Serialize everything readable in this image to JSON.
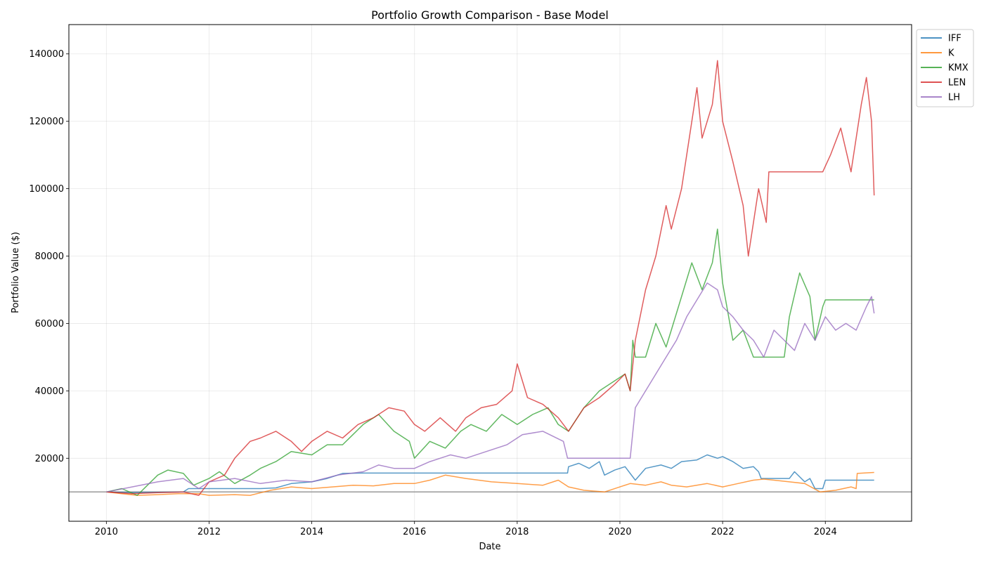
{
  "chart_data": {
    "type": "line",
    "title": "Portfolio Growth Comparison - Base Model",
    "xlabel": "Date",
    "ylabel": "Portfolio Value ($)",
    "xlim": [
      2009.27,
      2025.68
    ],
    "ylim": [
      1300,
      148700
    ],
    "x_ticks": [
      2010,
      2012,
      2014,
      2016,
      2018,
      2020,
      2022,
      2024
    ],
    "y_ticks": [
      20000,
      40000,
      60000,
      80000,
      100000,
      120000,
      140000
    ],
    "grid": true,
    "legend_position": "top-right outside",
    "reference_line": {
      "y": 10000,
      "color": "#999999"
    },
    "series": [
      {
        "name": "IFF",
        "color": "#1f77b4",
        "points": [
          [
            2010.0,
            10000
          ],
          [
            2010.5,
            9800
          ],
          [
            2011.0,
            9900
          ],
          [
            2011.5,
            10000
          ],
          [
            2011.6,
            11000
          ],
          [
            2012.0,
            11000
          ],
          [
            2012.5,
            11000
          ],
          [
            2013.0,
            11000
          ],
          [
            2013.3,
            11200
          ],
          [
            2013.6,
            12500
          ],
          [
            2014.0,
            13000
          ],
          [
            2014.3,
            14000
          ],
          [
            2014.6,
            15500
          ],
          [
            2015.0,
            15600
          ],
          [
            2016.0,
            15600
          ],
          [
            2017.0,
            15600
          ],
          [
            2018.0,
            15600
          ],
          [
            2018.98,
            15600
          ],
          [
            2019.0,
            17500
          ],
          [
            2019.2,
            18500
          ],
          [
            2019.4,
            17000
          ],
          [
            2019.6,
            19000
          ],
          [
            2019.7,
            15000
          ],
          [
            2019.9,
            16500
          ],
          [
            2020.1,
            17500
          ],
          [
            2020.3,
            13500
          ],
          [
            2020.5,
            17000
          ],
          [
            2020.8,
            18000
          ],
          [
            2021.0,
            17000
          ],
          [
            2021.2,
            19000
          ],
          [
            2021.5,
            19500
          ],
          [
            2021.7,
            21000
          ],
          [
            2021.9,
            20000
          ],
          [
            2022.0,
            20500
          ],
          [
            2022.2,
            19000
          ],
          [
            2022.4,
            17000
          ],
          [
            2022.6,
            17500
          ],
          [
            2022.7,
            16000
          ],
          [
            2022.75,
            14000
          ],
          [
            2023.3,
            14000
          ],
          [
            2023.4,
            16000
          ],
          [
            2023.6,
            13000
          ],
          [
            2023.7,
            14000
          ],
          [
            2023.8,
            11000
          ],
          [
            2023.95,
            11000
          ],
          [
            2024.0,
            13500
          ],
          [
            2024.95,
            13500
          ]
        ]
      },
      {
        "name": "K",
        "color": "#ff7f0e",
        "points": [
          [
            2010.0,
            10000
          ],
          [
            2010.3,
            9500
          ],
          [
            2010.6,
            9000
          ],
          [
            2011.0,
            9200
          ],
          [
            2011.4,
            9500
          ],
          [
            2011.8,
            9500
          ],
          [
            2012.0,
            9000
          ],
          [
            2012.5,
            9200
          ],
          [
            2012.8,
            9000
          ],
          [
            2013.2,
            10500
          ],
          [
            2013.6,
            11500
          ],
          [
            2014.0,
            11000
          ],
          [
            2014.4,
            11500
          ],
          [
            2014.8,
            12000
          ],
          [
            2015.2,
            11800
          ],
          [
            2015.6,
            12500
          ],
          [
            2016.0,
            12500
          ],
          [
            2016.3,
            13500
          ],
          [
            2016.6,
            15000
          ],
          [
            2017.0,
            14000
          ],
          [
            2017.5,
            13000
          ],
          [
            2018.0,
            12500
          ],
          [
            2018.5,
            12000
          ],
          [
            2018.8,
            13500
          ],
          [
            2019.0,
            11500
          ],
          [
            2019.3,
            10500
          ],
          [
            2019.7,
            10000
          ],
          [
            2020.0,
            11500
          ],
          [
            2020.2,
            12500
          ],
          [
            2020.5,
            12000
          ],
          [
            2020.8,
            13000
          ],
          [
            2021.0,
            12000
          ],
          [
            2021.3,
            11500
          ],
          [
            2021.7,
            12500
          ],
          [
            2022.0,
            11500
          ],
          [
            2022.3,
            12500
          ],
          [
            2022.6,
            13500
          ],
          [
            2022.8,
            13800
          ],
          [
            2023.0,
            13500
          ],
          [
            2023.3,
            13000
          ],
          [
            2023.6,
            12500
          ],
          [
            2023.9,
            10000
          ],
          [
            2024.2,
            10500
          ],
          [
            2024.5,
            11500
          ],
          [
            2024.6,
            11000
          ],
          [
            2024.62,
            15500
          ],
          [
            2024.95,
            15800
          ]
        ]
      },
      {
        "name": "KMX",
        "color": "#2ca02c",
        "points": [
          [
            2010.0,
            10000
          ],
          [
            2010.3,
            11000
          ],
          [
            2010.6,
            9000
          ],
          [
            2010.8,
            12000
          ],
          [
            2011.0,
            15000
          ],
          [
            2011.2,
            16500
          ],
          [
            2011.5,
            15500
          ],
          [
            2011.7,
            12000
          ],
          [
            2012.0,
            14000
          ],
          [
            2012.2,
            16000
          ],
          [
            2012.5,
            12500
          ],
          [
            2012.8,
            15000
          ],
          [
            2013.0,
            17000
          ],
          [
            2013.3,
            19000
          ],
          [
            2013.6,
            22000
          ],
          [
            2014.0,
            21000
          ],
          [
            2014.3,
            24000
          ],
          [
            2014.6,
            24000
          ],
          [
            2014.8,
            27000
          ],
          [
            2015.0,
            30000
          ],
          [
            2015.3,
            33000
          ],
          [
            2015.6,
            28000
          ],
          [
            2015.9,
            25000
          ],
          [
            2016.0,
            20000
          ],
          [
            2016.3,
            25000
          ],
          [
            2016.6,
            23000
          ],
          [
            2016.9,
            28000
          ],
          [
            2017.1,
            30000
          ],
          [
            2017.4,
            28000
          ],
          [
            2017.7,
            33000
          ],
          [
            2018.0,
            30000
          ],
          [
            2018.3,
            33000
          ],
          [
            2018.6,
            35000
          ],
          [
            2018.8,
            30000
          ],
          [
            2019.0,
            28000
          ],
          [
            2019.3,
            35000
          ],
          [
            2019.6,
            40000
          ],
          [
            2019.9,
            43000
          ],
          [
            2020.1,
            45000
          ],
          [
            2020.2,
            40000
          ],
          [
            2020.25,
            55000
          ],
          [
            2020.3,
            50000
          ],
          [
            2020.5,
            50000
          ],
          [
            2020.7,
            60000
          ],
          [
            2020.9,
            53000
          ],
          [
            2021.0,
            58000
          ],
          [
            2021.2,
            68000
          ],
          [
            2021.4,
            78000
          ],
          [
            2021.6,
            70000
          ],
          [
            2021.8,
            78000
          ],
          [
            2021.9,
            88000
          ],
          [
            2022.0,
            72000
          ],
          [
            2022.2,
            55000
          ],
          [
            2022.4,
            58000
          ],
          [
            2022.6,
            50000
          ],
          [
            2022.75,
            50000
          ],
          [
            2023.2,
            50000
          ],
          [
            2023.3,
            62000
          ],
          [
            2023.5,
            75000
          ],
          [
            2023.7,
            68000
          ],
          [
            2023.8,
            55000
          ],
          [
            2023.95,
            65000
          ],
          [
            2024.0,
            67000
          ],
          [
            2024.95,
            67000
          ]
        ]
      },
      {
        "name": "LEN",
        "color": "#d62728",
        "points": [
          [
            2010.0,
            10000
          ],
          [
            2010.5,
            9500
          ],
          [
            2011.0,
            9800
          ],
          [
            2011.5,
            10000
          ],
          [
            2011.8,
            9000
          ],
          [
            2012.0,
            13000
          ],
          [
            2012.3,
            15000
          ],
          [
            2012.5,
            20000
          ],
          [
            2012.8,
            25000
          ],
          [
            2013.0,
            26000
          ],
          [
            2013.3,
            28000
          ],
          [
            2013.6,
            25000
          ],
          [
            2013.8,
            22000
          ],
          [
            2014.0,
            25000
          ],
          [
            2014.3,
            28000
          ],
          [
            2014.6,
            26000
          ],
          [
            2014.9,
            30000
          ],
          [
            2015.2,
            32000
          ],
          [
            2015.5,
            35000
          ],
          [
            2015.8,
            34000
          ],
          [
            2016.0,
            30000
          ],
          [
            2016.2,
            28000
          ],
          [
            2016.5,
            32000
          ],
          [
            2016.8,
            28000
          ],
          [
            2017.0,
            32000
          ],
          [
            2017.3,
            35000
          ],
          [
            2017.6,
            36000
          ],
          [
            2017.9,
            40000
          ],
          [
            2018.0,
            48000
          ],
          [
            2018.2,
            38000
          ],
          [
            2018.5,
            36000
          ],
          [
            2018.8,
            32000
          ],
          [
            2019.0,
            28000
          ],
          [
            2019.3,
            35000
          ],
          [
            2019.6,
            38000
          ],
          [
            2019.9,
            42000
          ],
          [
            2020.1,
            45000
          ],
          [
            2020.2,
            40000
          ],
          [
            2020.3,
            55000
          ],
          [
            2020.5,
            70000
          ],
          [
            2020.7,
            80000
          ],
          [
            2020.9,
            95000
          ],
          [
            2021.0,
            88000
          ],
          [
            2021.2,
            100000
          ],
          [
            2021.4,
            120000
          ],
          [
            2021.5,
            130000
          ],
          [
            2021.6,
            115000
          ],
          [
            2021.8,
            125000
          ],
          [
            2021.9,
            138000
          ],
          [
            2022.0,
            120000
          ],
          [
            2022.2,
            108000
          ],
          [
            2022.4,
            95000
          ],
          [
            2022.5,
            80000
          ],
          [
            2022.7,
            100000
          ],
          [
            2022.85,
            90000
          ],
          [
            2022.9,
            105000
          ],
          [
            2023.95,
            105000
          ],
          [
            2024.1,
            110000
          ],
          [
            2024.3,
            118000
          ],
          [
            2024.5,
            105000
          ],
          [
            2024.7,
            125000
          ],
          [
            2024.8,
            133000
          ],
          [
            2024.9,
            120000
          ],
          [
            2024.95,
            98000
          ]
        ]
      },
      {
        "name": "LH",
        "color": "#9467bd",
        "points": [
          [
            2010.0,
            10000
          ],
          [
            2010.5,
            11500
          ],
          [
            2011.0,
            13000
          ],
          [
            2011.5,
            14000
          ],
          [
            2011.8,
            11000
          ],
          [
            2012.0,
            13000
          ],
          [
            2012.5,
            14000
          ],
          [
            2013.0,
            12500
          ],
          [
            2013.5,
            13500
          ],
          [
            2014.0,
            13000
          ],
          [
            2014.5,
            15000
          ],
          [
            2015.0,
            16000
          ],
          [
            2015.3,
            18000
          ],
          [
            2015.6,
            17000
          ],
          [
            2016.0,
            17000
          ],
          [
            2016.3,
            19000
          ],
          [
            2016.7,
            21000
          ],
          [
            2017.0,
            20000
          ],
          [
            2017.4,
            22000
          ],
          [
            2017.8,
            24000
          ],
          [
            2018.1,
            27000
          ],
          [
            2018.5,
            28000
          ],
          [
            2018.9,
            25000
          ],
          [
            2018.98,
            20000
          ],
          [
            2020.2,
            20000
          ],
          [
            2020.3,
            35000
          ],
          [
            2020.5,
            40000
          ],
          [
            2020.7,
            45000
          ],
          [
            2020.9,
            50000
          ],
          [
            2021.1,
            55000
          ],
          [
            2021.3,
            62000
          ],
          [
            2021.5,
            67000
          ],
          [
            2021.7,
            72000
          ],
          [
            2021.9,
            70000
          ],
          [
            2022.0,
            65000
          ],
          [
            2022.2,
            62000
          ],
          [
            2022.4,
            58000
          ],
          [
            2022.6,
            55000
          ],
          [
            2022.8,
            50000
          ],
          [
            2023.0,
            58000
          ],
          [
            2023.2,
            55000
          ],
          [
            2023.4,
            52000
          ],
          [
            2023.6,
            60000
          ],
          [
            2023.8,
            55000
          ],
          [
            2024.0,
            62000
          ],
          [
            2024.2,
            58000
          ],
          [
            2024.4,
            60000
          ],
          [
            2024.6,
            58000
          ],
          [
            2024.8,
            65000
          ],
          [
            2024.9,
            68000
          ],
          [
            2024.95,
            63000
          ]
        ]
      }
    ]
  }
}
